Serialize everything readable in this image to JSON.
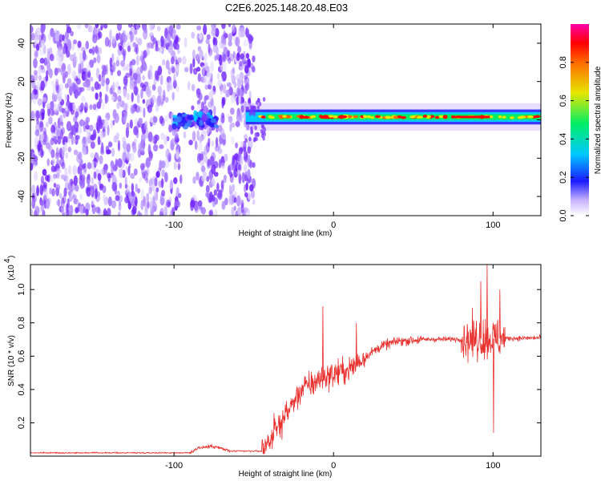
{
  "title": "C2E6.2025.148.20.48.E03",
  "chart_data": [
    {
      "type": "heatmap",
      "xlabel": "Height of straight line (km)",
      "ylabel": "Frequency (Hz)",
      "xlim": [
        -190,
        130
      ],
      "ylim": [
        -50,
        50
      ],
      "xticks": [
        -100,
        0,
        100
      ],
      "yticks": [
        -40,
        -20,
        0,
        20,
        40
      ],
      "colorbar": {
        "label": "Normalized spectral amplitude",
        "range": [
          0,
          1
        ],
        "ticks": [
          0.0,
          0.2,
          0.4,
          0.6,
          0.8
        ]
      },
      "features": {
        "noise_region_km": [
          -190,
          -50
        ],
        "gap_km": [
          -97,
          -88
        ],
        "blob_km": [
          -100,
          -73
        ],
        "band_start_km": -55,
        "band_center_hz": 1.5,
        "band_halfwidth_hz": 3
      }
    },
    {
      "type": "line",
      "xlabel": "Height of straight line (km)",
      "ylabel": "SNR (10 * v/v)",
      "y_multiplier": "(x10^4)",
      "xlim": [
        -190,
        130
      ],
      "ylim": [
        0,
        1.15
      ],
      "xticks": [
        -100,
        0,
        100
      ],
      "yticks": [
        0.2,
        0.4,
        0.6,
        0.8,
        1.0
      ],
      "color": "#e8312e",
      "profile": [
        {
          "x": -190,
          "y": 0.02
        },
        {
          "x": -90,
          "y": 0.02
        },
        {
          "x": -85,
          "y": 0.05
        },
        {
          "x": -75,
          "y": 0.06
        },
        {
          "x": -65,
          "y": 0.03
        },
        {
          "x": -45,
          "y": 0.03
        },
        {
          "x": -40,
          "y": 0.1
        },
        {
          "x": -30,
          "y": 0.25
        },
        {
          "x": -20,
          "y": 0.4
        },
        {
          "x": -5,
          "y": 0.48
        },
        {
          "x": 10,
          "y": 0.52
        },
        {
          "x": 20,
          "y": 0.6
        },
        {
          "x": 30,
          "y": 0.66
        },
        {
          "x": 40,
          "y": 0.69
        },
        {
          "x": 55,
          "y": 0.7
        },
        {
          "x": 130,
          "y": 0.71
        }
      ],
      "spikes": [
        {
          "x": -7,
          "y": 0.9
        },
        {
          "x": 14,
          "y": 0.8
        },
        {
          "x": 92,
          "y": 1.05
        },
        {
          "x": 96,
          "y": 1.15
        },
        {
          "x": 100,
          "y": 0.14
        },
        {
          "x": 104,
          "y": 1.0
        }
      ]
    }
  ]
}
